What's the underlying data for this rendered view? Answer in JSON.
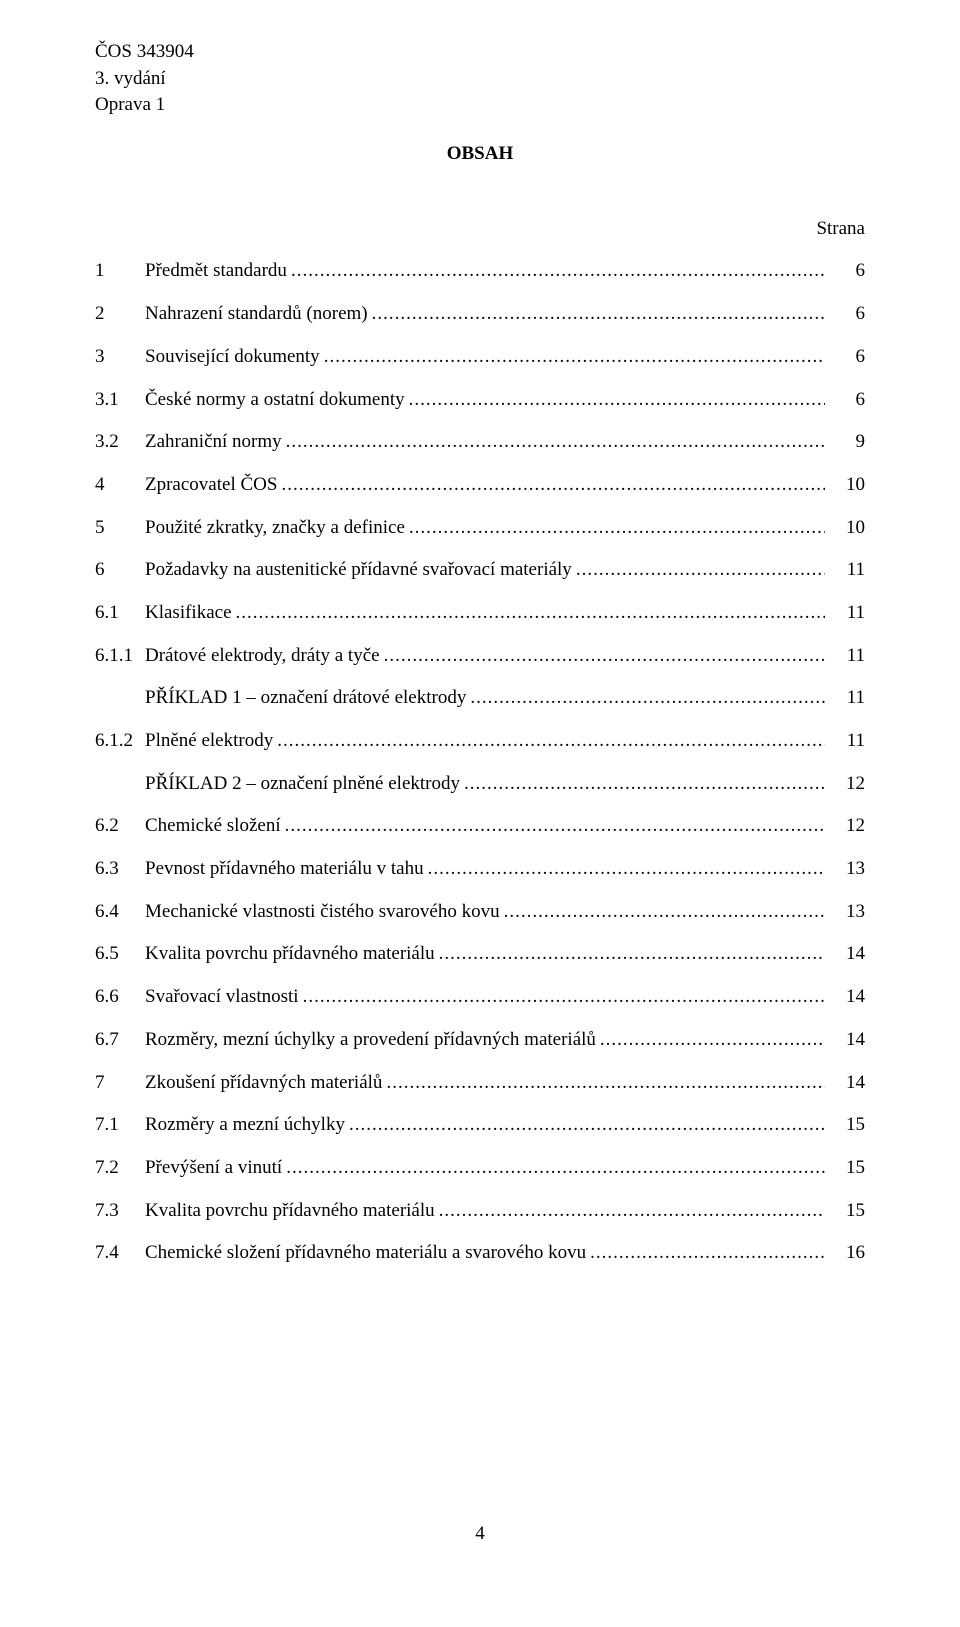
{
  "header": {
    "line1": "ČOS 343904",
    "line2": "3. vydání",
    "line3": "Oprava 1"
  },
  "title": "OBSAH",
  "stranaLabel": "Strana",
  "toc": [
    {
      "num": "1",
      "text": "Předmět standardu",
      "page": "6",
      "indent": false
    },
    {
      "num": "2",
      "text": "Nahrazení standardů (norem)",
      "page": "6",
      "indent": false
    },
    {
      "num": "3",
      "text": "Související dokumenty",
      "page": "6",
      "indent": false
    },
    {
      "num": "3.1",
      "text": "České normy a ostatní dokumenty",
      "page": "6",
      "indent": false
    },
    {
      "num": "3.2",
      "text": "Zahraniční normy",
      "page": "9",
      "indent": false
    },
    {
      "num": "4",
      "text": "Zpracovatel ČOS",
      "page": "10",
      "indent": false
    },
    {
      "num": "5",
      "text": "Použité zkratky, značky a definice",
      "page": "10",
      "indent": false
    },
    {
      "num": "6",
      "text": "Požadavky na austenitické přídavné svařovací materiály",
      "page": "11",
      "indent": false
    },
    {
      "num": "6.1",
      "text": "Klasifikace",
      "page": "11",
      "indent": false
    },
    {
      "num": "6.1.1",
      "text": "Drátové elektrody, dráty a tyče",
      "page": "11",
      "indent": false
    },
    {
      "num": "",
      "text": "PŘÍKLAD 1 – označení drátové elektrody",
      "page": "11",
      "indent": true
    },
    {
      "num": "6.1.2",
      "text": "Plněné elektrody",
      "page": "11",
      "indent": false
    },
    {
      "num": "",
      "text": "PŘÍKLAD 2 – označení plněné elektrody",
      "page": "12",
      "indent": true
    },
    {
      "num": "6.2",
      "text": "Chemické složení",
      "page": "12",
      "indent": false
    },
    {
      "num": "6.3",
      "text": "Pevnost přídavného materiálu v tahu",
      "page": "13",
      "indent": false
    },
    {
      "num": "6.4",
      "text": "Mechanické vlastnosti čistého svarového kovu",
      "page": "13",
      "indent": false
    },
    {
      "num": "6.5",
      "text": "Kvalita povrchu přídavného materiálu",
      "page": "14",
      "indent": false
    },
    {
      "num": "6.6",
      "text": "Svařovací vlastnosti",
      "page": "14",
      "indent": false
    },
    {
      "num": "6.7",
      "text": "Rozměry, mezní úchylky a provedení přídavných materiálů",
      "page": "14",
      "indent": false
    },
    {
      "num": "7",
      "text": "Zkoušení přídavných materiálů",
      "page": "14",
      "indent": false
    },
    {
      "num": "7.1",
      "text": "Rozměry a mezní úchylky",
      "page": "15",
      "indent": false
    },
    {
      "num": "7.2",
      "text": "Převýšení a vinutí",
      "page": "15",
      "indent": false
    },
    {
      "num": "7.3",
      "text": "Kvalita povrchu přídavného materiálu",
      "page": "15",
      "indent": false
    },
    {
      "num": "7.4",
      "text": "Chemické složení přídavného materiálu a svarového kovu",
      "page": "16",
      "indent": false
    }
  ],
  "pageNumber": "4"
}
